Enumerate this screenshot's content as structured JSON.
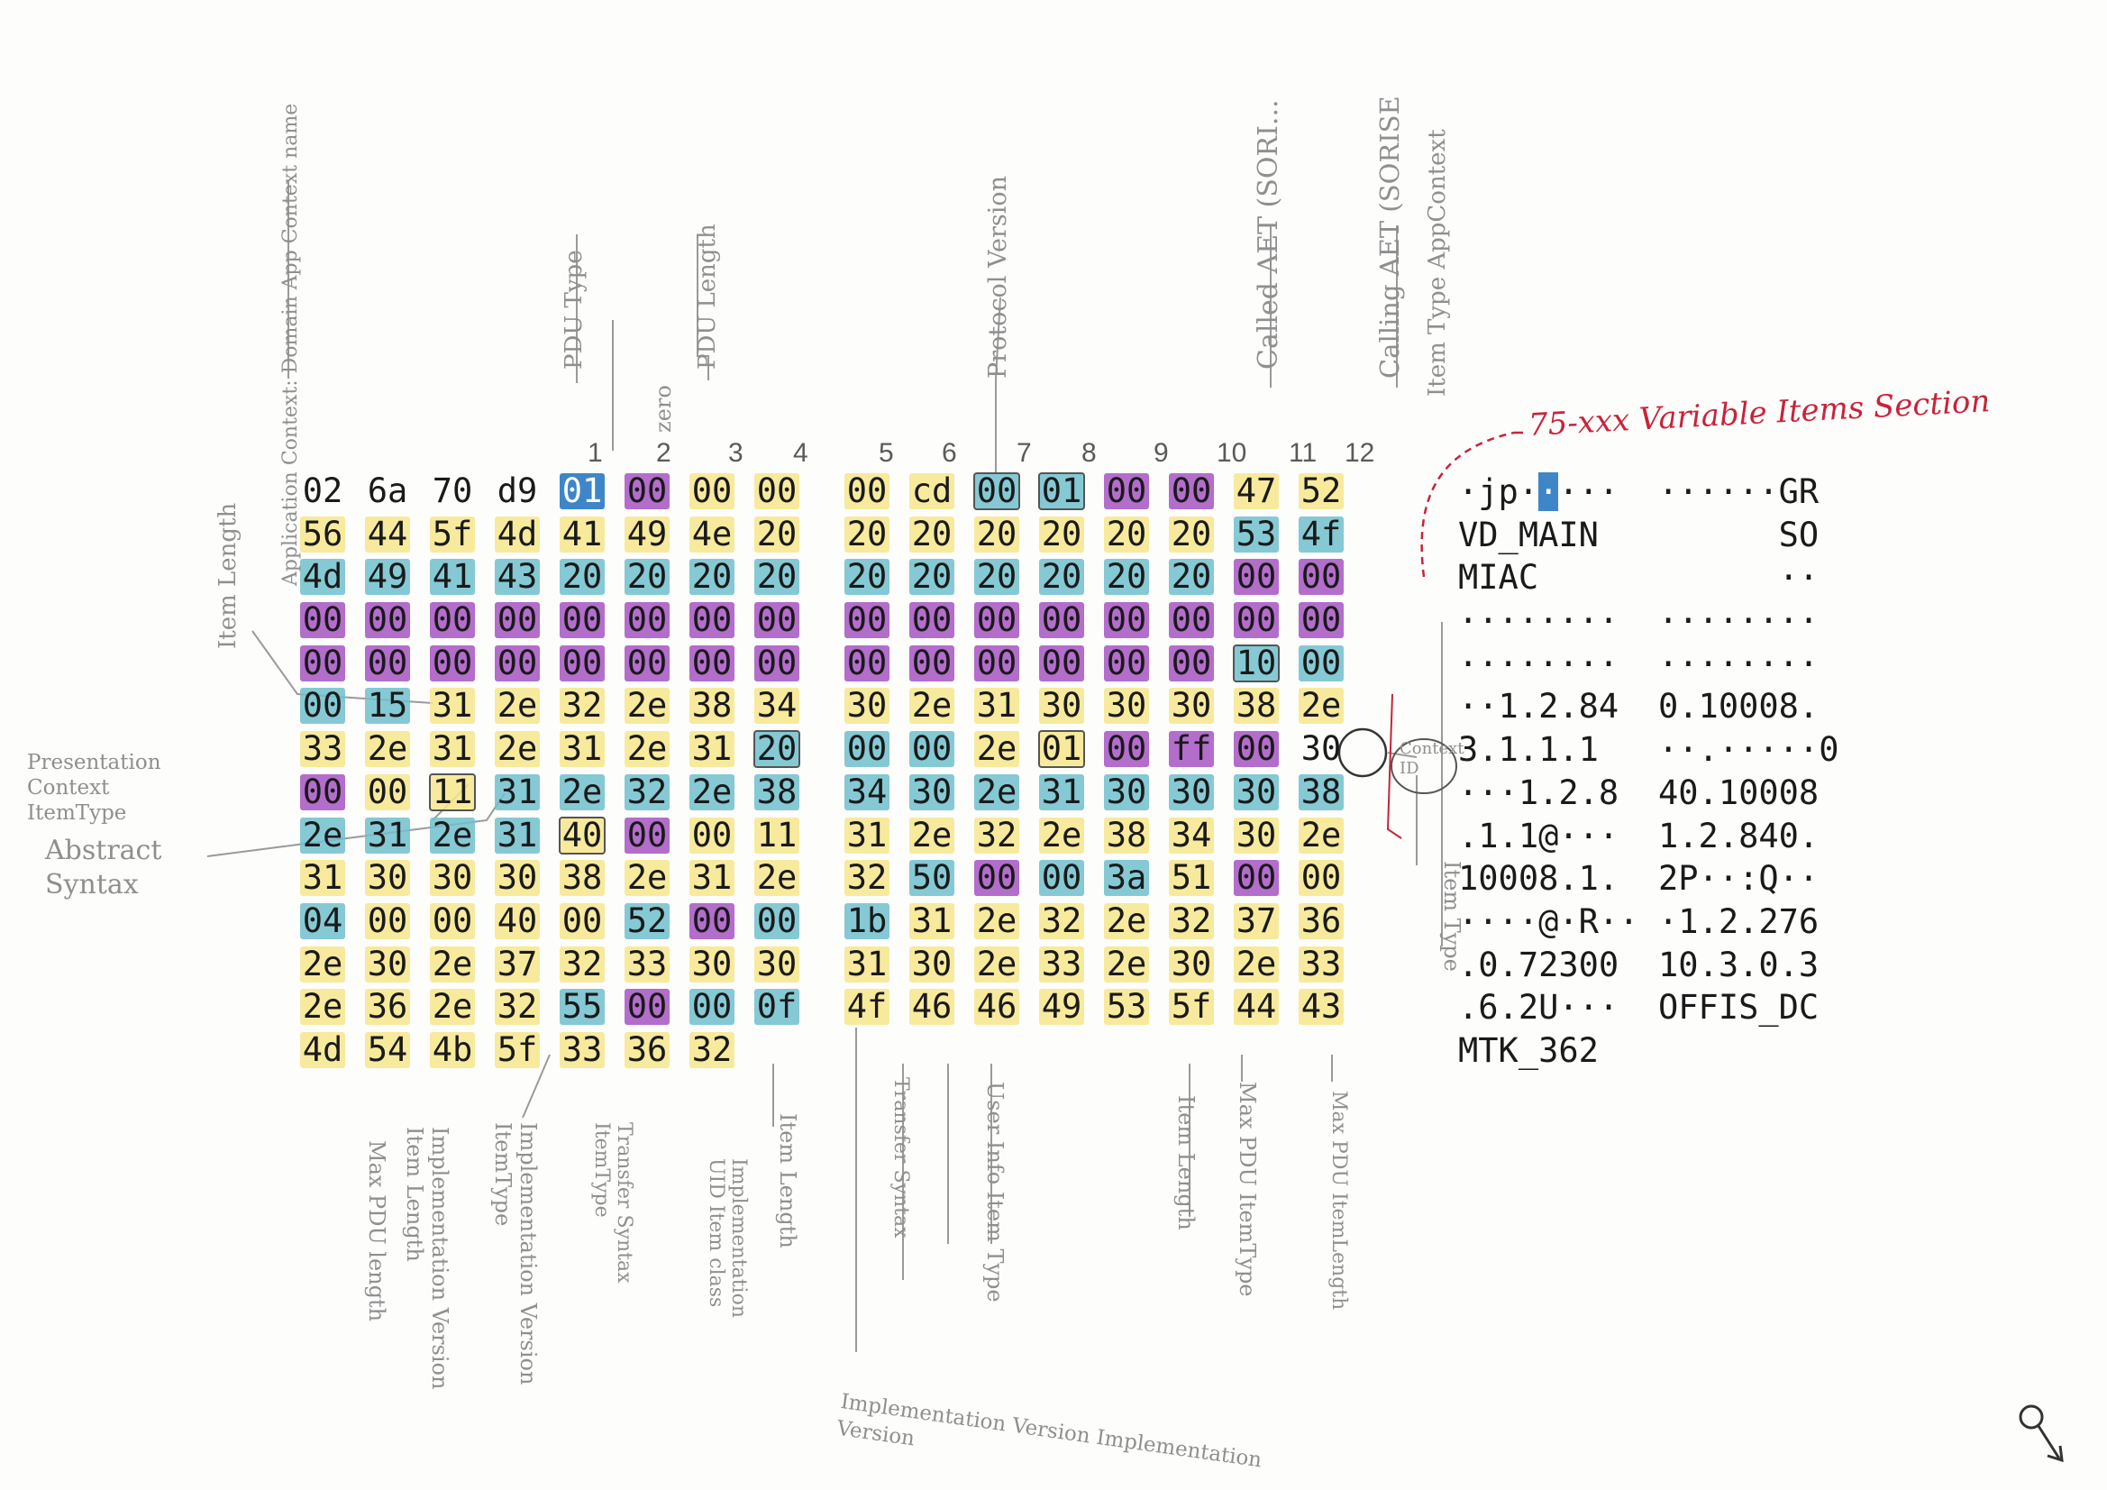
{
  "hex_rows": [
    [
      "02",
      "6a",
      "70",
      "d9",
      "01",
      "00",
      "00",
      "00",
      "00",
      "cd",
      "00",
      "01",
      "00",
      "00",
      "47",
      "52"
    ],
    [
      "56",
      "44",
      "5f",
      "4d",
      "41",
      "49",
      "4e",
      "20",
      "20",
      "20",
      "20",
      "20",
      "20",
      "20",
      "53",
      "4f"
    ],
    [
      "4d",
      "49",
      "41",
      "43",
      "20",
      "20",
      "20",
      "20",
      "20",
      "20",
      "20",
      "20",
      "20",
      "20",
      "00",
      "00"
    ],
    [
      "00",
      "00",
      "00",
      "00",
      "00",
      "00",
      "00",
      "00",
      "00",
      "00",
      "00",
      "00",
      "00",
      "00",
      "00",
      "00"
    ],
    [
      "00",
      "00",
      "00",
      "00",
      "00",
      "00",
      "00",
      "00",
      "00",
      "00",
      "00",
      "00",
      "00",
      "00",
      "10",
      "00"
    ],
    [
      "00",
      "15",
      "31",
      "2e",
      "32",
      "2e",
      "38",
      "34",
      "30",
      "2e",
      "31",
      "30",
      "30",
      "30",
      "38",
      "2e"
    ],
    [
      "33",
      "2e",
      "31",
      "2e",
      "31",
      "2e",
      "31",
      "20",
      "00",
      "00",
      "2e",
      "01",
      "00",
      "ff",
      "00",
      "30"
    ],
    [
      "00",
      "00",
      "11",
      "31",
      "2e",
      "32",
      "2e",
      "38",
      "34",
      "30",
      "2e",
      "31",
      "30",
      "30",
      "30",
      "38"
    ],
    [
      "2e",
      "31",
      "2e",
      "31",
      "40",
      "00",
      "00",
      "11",
      "31",
      "2e",
      "32",
      "2e",
      "38",
      "34",
      "30",
      "2e"
    ],
    [
      "31",
      "30",
      "30",
      "30",
      "38",
      "2e",
      "31",
      "2e",
      "32",
      "50",
      "00",
      "00",
      "3a",
      "51",
      "00",
      "00"
    ],
    [
      "04",
      "00",
      "00",
      "40",
      "00",
      "52",
      "00",
      "00",
      "1b",
      "31",
      "2e",
      "32",
      "2e",
      "32",
      "37",
      "36"
    ],
    [
      "2e",
      "30",
      "2e",
      "37",
      "32",
      "33",
      "30",
      "30",
      "31",
      "30",
      "2e",
      "33",
      "2e",
      "30",
      "2e",
      "33"
    ],
    [
      "2e",
      "36",
      "2e",
      "32",
      "55",
      "00",
      "00",
      "0f",
      "4f",
      "46",
      "46",
      "49",
      "53",
      "5f",
      "44",
      "43"
    ],
    [
      "4d",
      "54",
      "4b",
      "5f",
      "33",
      "36",
      "32"
    ]
  ],
  "ascii_rows": [
    [
      "·jp·■···",
      "······GR"
    ],
    [
      "VD_MAIN ",
      "      SO"
    ],
    [
      "MIAC    ",
      "      ··"
    ],
    [
      "········",
      "········"
    ],
    [
      "········",
      "········"
    ],
    [
      "··1.2.84",
      "0.10008."
    ],
    [
      "3.1.1.1 ",
      "··.·····0"
    ],
    [
      "···1.2.8",
      "40.10008"
    ],
    [
      ".1.1@···",
      "1.2.840."
    ],
    [
      "10008.1.",
      "2P··:Q··"
    ],
    [
      "····@·R··",
      "·1.2.276"
    ],
    [
      ".0.72300",
      "10.3.0.3"
    ],
    [
      ".6.2U···",
      "OFFIS_DC"
    ],
    [
      "MTK_362",
      ""
    ]
  ],
  "column_numbers": [
    "1",
    "2",
    "3",
    "4",
    "5",
    "6",
    "7",
    "8",
    "9",
    "10",
    "11",
    "12"
  ],
  "annotations": {
    "pdu_type": "PDU Type",
    "zero": "zero",
    "pdu_length": "PDU Length",
    "protocol_version": "Protocol Version",
    "called_aet": "Called AET (SORI...",
    "calling_aet": "Calling AET (SORISE",
    "item_type_app_context": "Item Type AppContext",
    "app_context_name": "Application Context: Domain App Context name",
    "item_length_top": "Item Length",
    "variable_items": "75-xxx Variable Items Section",
    "presentation_context": "Presentation Context ItemType",
    "abstract_syntax": "Abstract Syntax",
    "context_id": "Context ID",
    "item_type_right": "Item Type",
    "max_pdu_length": "Max PDU length",
    "impl_version_item_length": "Implementation Version Item Length",
    "impl_version_item_type": "Implementation Version ItemType",
    "transfer_syntax_item_type": "Transfer Syntax ItemType",
    "impl_uid_item_class": "Implementation UID Item class",
    "item_length_a": "Item Length",
    "transfer_syntax": "Transfer Syntax",
    "user_info_item_type": "User Info Item Type",
    "item_length_b": "Item Length",
    "max_pdu_item_type": "Max PDU ItemType",
    "max_pdu_item_length": "Max PDU ItemLength",
    "impl_version_bottom": "Implementation Version Implementation Version"
  },
  "colors": {
    "yellow": "#f6e68c",
    "teal": "#70c0cc",
    "purple": "#a048be",
    "blue": "#3f86c8",
    "red_annotation": "#c8233a"
  }
}
